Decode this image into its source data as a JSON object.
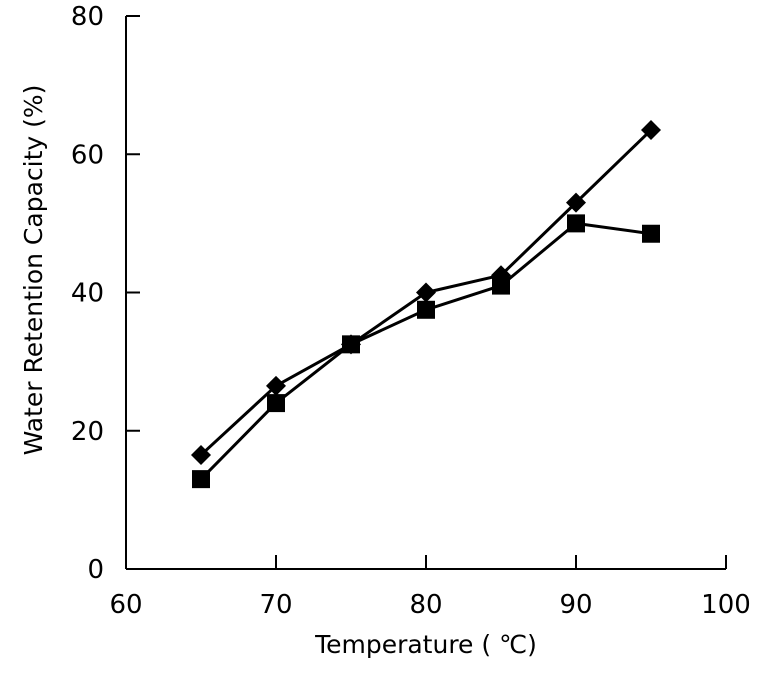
{
  "chart_data": {
    "type": "line",
    "title": "",
    "xlabel": "Temperature ( ℃)",
    "ylabel": "Water  Retention  Capacity  (%)",
    "xlim": [
      60,
      100
    ],
    "ylim": [
      0,
      80
    ],
    "x_ticks": [
      60,
      70,
      80,
      90,
      100
    ],
    "y_ticks": [
      0,
      20,
      40,
      60,
      80
    ],
    "grid": false,
    "legend": "none",
    "series": [
      {
        "marker": "diamond",
        "color": "#000000",
        "x": [
          65,
          70,
          75,
          80,
          85,
          90,
          95
        ],
        "y": [
          16.5,
          26.5,
          32.5,
          40,
          42.5,
          53,
          63.5
        ]
      },
      {
        "marker": "square",
        "color": "#000000",
        "x": [
          65,
          70,
          75,
          80,
          85,
          90,
          95
        ],
        "y": [
          13,
          24,
          32.5,
          37.5,
          41,
          50,
          48.5
        ]
      }
    ]
  }
}
